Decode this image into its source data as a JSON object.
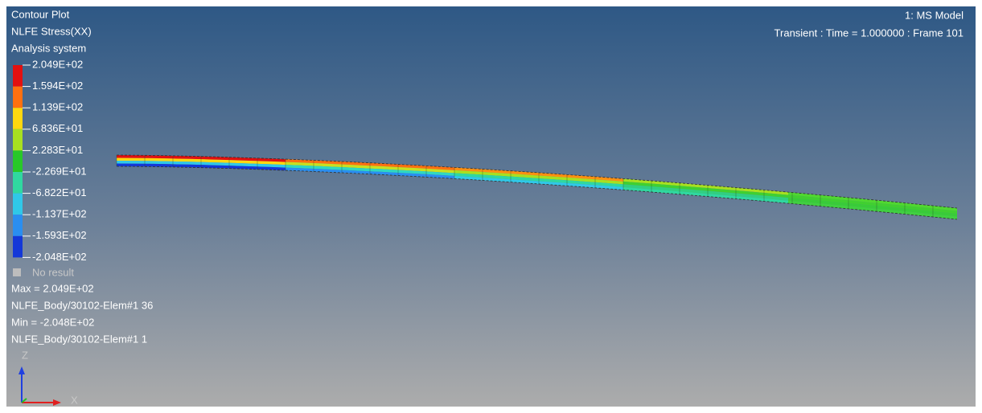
{
  "header": {
    "title": "Contour Plot",
    "result": "NLFE Stress(XX)",
    "system": "Analysis system"
  },
  "model": {
    "name": "1: MS Model",
    "frame": "Transient : Time = 1.000000 : Frame 101"
  },
  "legend": {
    "labels": [
      "2.049E+02",
      "1.594E+02",
      "1.139E+02",
      "6.836E+01",
      "2.283E+01",
      "-2.269E+01",
      "-6.822E+01",
      "-1.137E+02",
      "-1.593E+02",
      "-2.048E+02"
    ],
    "colors": [
      "#e31010",
      "#ff7010",
      "#ffd810",
      "#a8e020",
      "#28c828",
      "#30d8a0",
      "#30c8e8",
      "#2a8ef0",
      "#1438d8"
    ],
    "no_result": "No result"
  },
  "extremes": {
    "max": "Max = 2.049E+02",
    "max_location": "NLFE_Body/30102-Elem#1 36",
    "min": "Min = -2.048E+02",
    "min_location": "NLFE_Body/30102-Elem#1 1"
  },
  "triad": {
    "z": "Z",
    "x": "X"
  }
}
